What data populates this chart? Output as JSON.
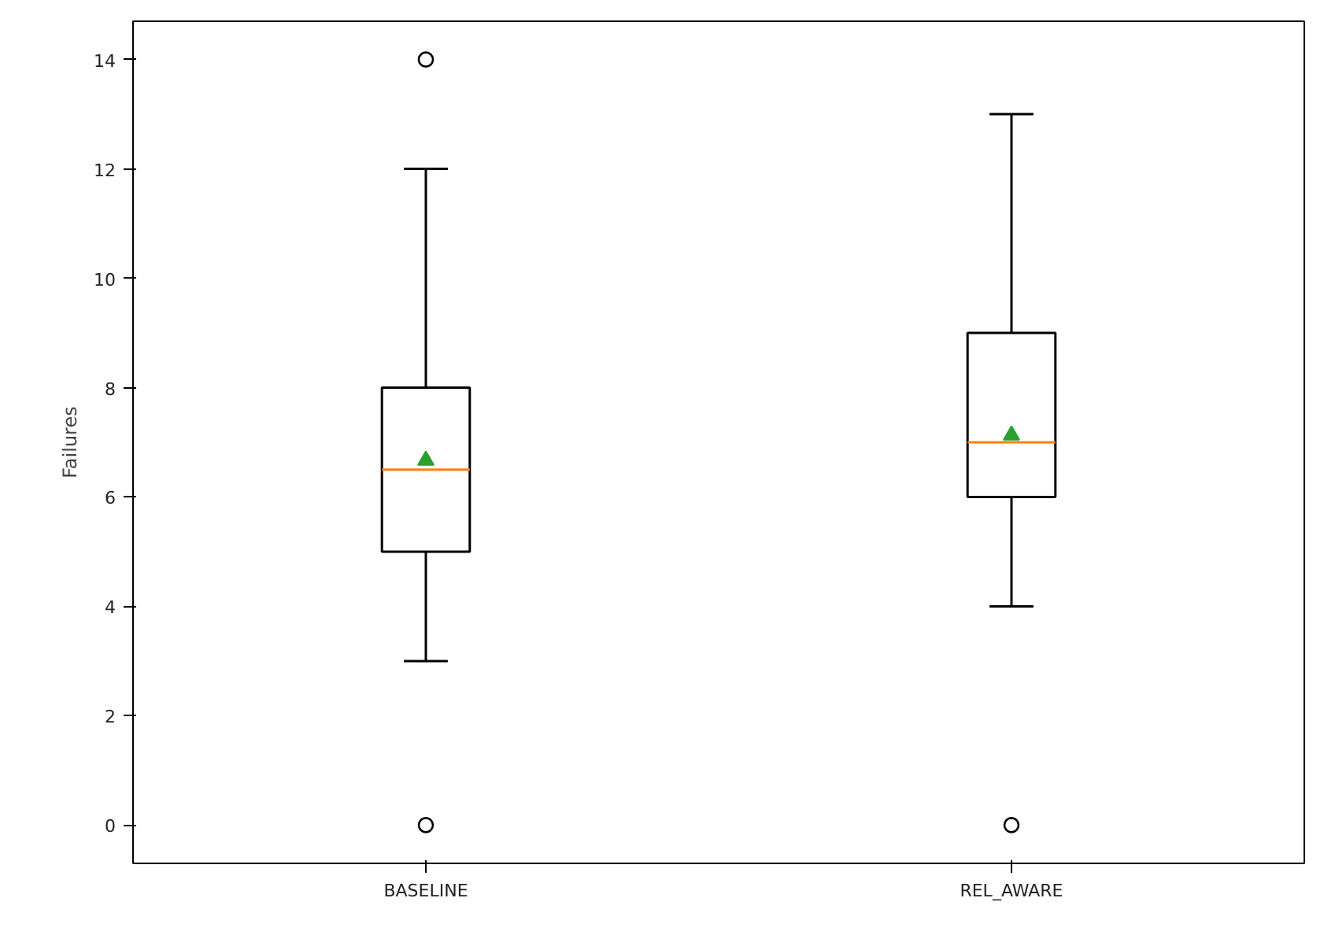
{
  "chart_data": {
    "type": "box",
    "ylabel": "Failures",
    "categories": [
      "BASELINE",
      "REL_AWARE"
    ],
    "boxes": [
      {
        "low": 3,
        "q1": 5,
        "median": 6.5,
        "q3": 8,
        "high": 12,
        "mean": 6.67,
        "outliers": [
          14,
          0
        ]
      },
      {
        "low": 4,
        "q1": 6,
        "median": 7,
        "q3": 9,
        "high": 13,
        "mean": 7.13,
        "outliers": [
          0
        ]
      }
    ],
    "ylim": [
      -0.7,
      14.7
    ],
    "yticks": [
      0,
      2,
      4,
      6,
      8,
      10,
      12,
      14
    ]
  }
}
